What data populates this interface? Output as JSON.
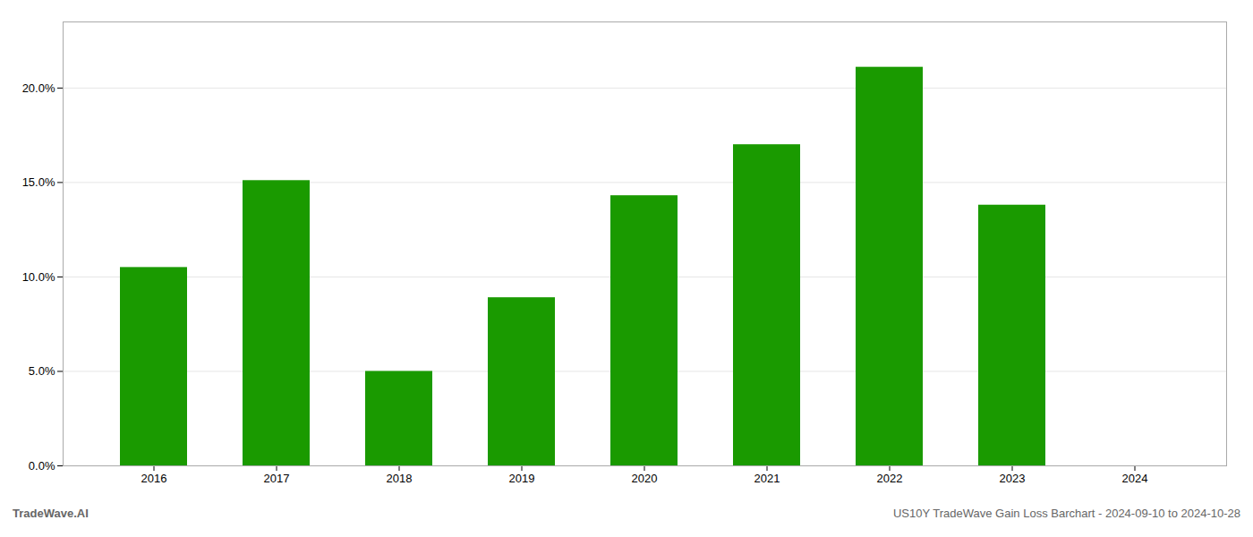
{
  "chart_data": {
    "type": "bar",
    "categories": [
      "2016",
      "2017",
      "2018",
      "2019",
      "2020",
      "2021",
      "2022",
      "2023",
      "2024"
    ],
    "values": [
      0.105,
      0.151,
      0.05,
      0.089,
      0.143,
      0.17,
      0.211,
      0.138,
      null
    ],
    "color": "#1a9a00",
    "ylim": [
      0,
      0.235
    ],
    "yticks": [
      {
        "value": 0.0,
        "label": "0.0%"
      },
      {
        "value": 0.05,
        "label": "5.0%"
      },
      {
        "value": 0.1,
        "label": "10.0%"
      },
      {
        "value": 0.15,
        "label": "15.0%"
      },
      {
        "value": 0.2,
        "label": "20.0%"
      }
    ],
    "grid": true,
    "annotations": [
      "TradeWave.AI",
      "US10Y TradeWave Gain Loss Barchart - 2024-09-10 to 2024-10-28"
    ]
  }
}
